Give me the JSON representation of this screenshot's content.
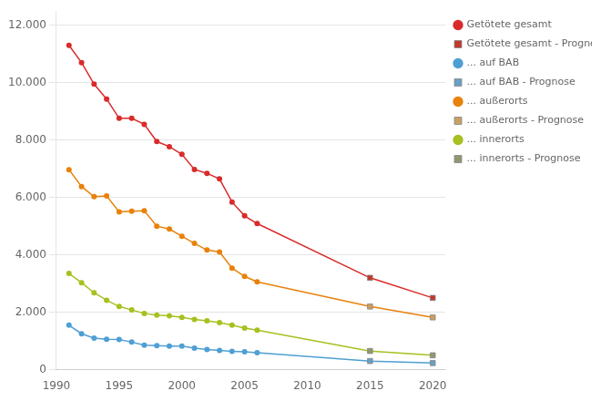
{
  "chart_data": {
    "type": "scatter",
    "xlim": [
      1990,
      2021
    ],
    "ylim": [
      0,
      12500
    ],
    "xticks": [
      1990,
      1995,
      2000,
      2005,
      2010,
      2015,
      2020
    ],
    "yticks": [
      0,
      {
        "value": 2000,
        "label": "2.000"
      },
      {
        "value": 4000,
        "label": "4.000"
      },
      {
        "value": 6000,
        "label": "6.000"
      },
      {
        "value": 8000,
        "label": "8.000"
      },
      {
        "value": 10000,
        "label": "10.000"
      },
      {
        "value": 12000,
        "label": "12.000"
      }
    ],
    "grid": "y",
    "legend": "upper right",
    "series": [
      {
        "name": "Getötete gesamt",
        "color": "#d92b2b",
        "marker": "circle",
        "line_style": "solid",
        "x": [
          1991,
          1992,
          1993,
          1994,
          1995,
          1996,
          1997,
          1998,
          1999,
          2000,
          2001,
          2002,
          2003,
          2004,
          2005,
          2006
        ],
        "values": [
          11300,
          10700,
          9949,
          9430,
          8758,
          8758,
          8549,
          7950,
          7772,
          7503,
          6977,
          6842,
          6648,
          5842,
          5361,
          5091
        ]
      },
      {
        "name": "Getötete gesamt - Prognose",
        "color": "#c0392b",
        "marker": "square",
        "line_style": "solid",
        "x": [
          2015,
          2020
        ],
        "values": [
          3200,
          2500
        ]
      },
      {
        "name": "... auf BAB",
        "color": "#4f9fd4",
        "marker": "circle",
        "line_style": "solid",
        "x": [
          1991,
          1992,
          1993,
          1994,
          1995,
          1996,
          1997,
          1998,
          1999,
          2000,
          2001,
          2002,
          2003,
          2004,
          2005,
          2006
        ],
        "values": [
          1550,
          1250,
          1100,
          1060,
          1050,
          960,
          850,
          840,
          820,
          820,
          750,
          700,
          670,
          640,
          620,
          590
        ]
      },
      {
        "name": "... auf BAB - Prognose",
        "color": "#6a9fc0",
        "marker": "square",
        "line_style": "solid",
        "x": [
          2015,
          2020
        ],
        "values": [
          300,
          230
        ]
      },
      {
        "name": "... außerorts",
        "color": "#e8820a",
        "marker": "circle",
        "line_style": "solid",
        "x": [
          1991,
          1992,
          1993,
          1994,
          1995,
          1996,
          1997,
          1998,
          1999,
          2000,
          2001,
          2002,
          2003,
          2004,
          2005,
          2006
        ],
        "values": [
          6970,
          6380,
          6030,
          6050,
          5500,
          5520,
          5540,
          5000,
          4900,
          4650,
          4400,
          4170,
          4100,
          3540,
          3250,
          3060
        ]
      },
      {
        "name": "... außerorts - Prognose",
        "color": "#c8a060",
        "marker": "square",
        "line_style": "solid",
        "x": [
          2015,
          2020
        ],
        "values": [
          2200,
          1820
        ]
      },
      {
        "name": "... innerorts",
        "color": "#a8c020",
        "marker": "circle",
        "line_style": "solid",
        "x": [
          1991,
          1992,
          1993,
          1994,
          1995,
          1996,
          1997,
          1998,
          1999,
          2000,
          2001,
          2002,
          2003,
          2004,
          2005,
          2006
        ],
        "values": [
          3350,
          3030,
          2680,
          2420,
          2200,
          2080,
          1960,
          1900,
          1880,
          1820,
          1750,
          1700,
          1640,
          1550,
          1450,
          1380
        ]
      },
      {
        "name": "... innerorts - Prognose",
        "color": "#909870",
        "marker": "square",
        "line_style": "solid",
        "x": [
          2015,
          2020
        ],
        "values": [
          650,
          500
        ]
      }
    ]
  }
}
